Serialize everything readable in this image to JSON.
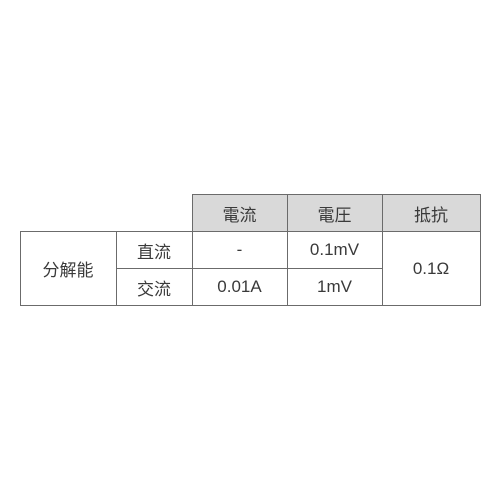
{
  "header": {
    "current": "電流",
    "voltage": "電圧",
    "resistance": "抵抗"
  },
  "rowLabel": "分解能",
  "rows": {
    "dc": {
      "label": "直流",
      "current": "-",
      "voltage": "0.1mV"
    },
    "ac": {
      "label": "交流",
      "current": "0.01A",
      "voltage": "1mV"
    }
  },
  "resistanceValue": "0.1Ω",
  "colors": {
    "headerBg": "#d9d9d9",
    "border": "#6b6b6b",
    "text": "#3a3a3a",
    "background": "#ffffff"
  },
  "fontSizePx": 17,
  "rowHeightPx": 36
}
